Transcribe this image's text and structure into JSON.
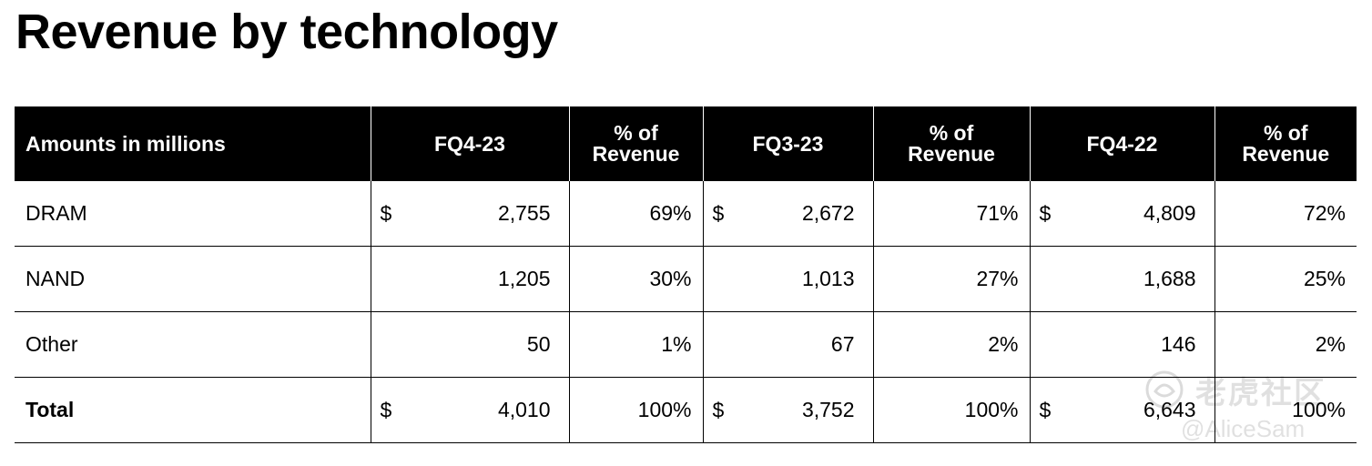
{
  "title": "Revenue by technology",
  "table": {
    "headers": [
      "Amounts in millions",
      "FQ4-23",
      "% of\nRevenue",
      "FQ3-23",
      "% of\nRevenue",
      "FQ4-22",
      "% of\nRevenue"
    ],
    "rows": [
      {
        "label": "DRAM",
        "cells": [
          {
            "cur": "$",
            "amt": "2,755"
          },
          {
            "pct": "69%"
          },
          {
            "cur": "$",
            "amt": "2,672"
          },
          {
            "pct": "71%"
          },
          {
            "cur": "$",
            "amt": "4,809"
          },
          {
            "pct": "72%"
          }
        ]
      },
      {
        "label": "NAND",
        "cells": [
          {
            "cur": "",
            "amt": "1,205"
          },
          {
            "pct": "30%"
          },
          {
            "cur": "",
            "amt": "1,013"
          },
          {
            "pct": "27%"
          },
          {
            "cur": "",
            "amt": "1,688"
          },
          {
            "pct": "25%"
          }
        ]
      },
      {
        "label": "Other",
        "cells": [
          {
            "cur": "",
            "amt": "50"
          },
          {
            "pct": "1%"
          },
          {
            "cur": "",
            "amt": "67"
          },
          {
            "pct": "2%"
          },
          {
            "cur": "",
            "amt": "146"
          },
          {
            "pct": "2%"
          }
        ]
      },
      {
        "label": "Total",
        "cells": [
          {
            "cur": "$",
            "amt": "4,010"
          },
          {
            "pct": "100%"
          },
          {
            "cur": "$",
            "amt": "3,752"
          },
          {
            "pct": "100%"
          },
          {
            "cur": "$",
            "amt": "6,643"
          },
          {
            "pct": "100%"
          }
        ]
      }
    ]
  },
  "watermark": {
    "text": "老虎社区",
    "user": "@AliceSam",
    "icon": "tiger-logo-icon"
  }
}
